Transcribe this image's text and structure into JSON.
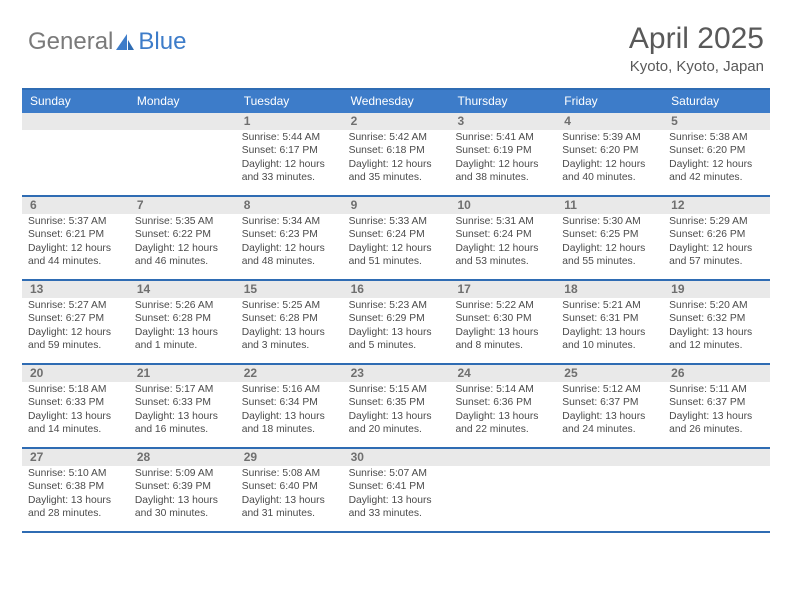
{
  "brand": {
    "part1": "General",
    "part2": "Blue"
  },
  "title": "April 2025",
  "location": "Kyoto, Kyoto, Japan",
  "colors": {
    "header_bg": "#3d7cc9",
    "border": "#2f6cb3",
    "daynum_bg": "#e9e9e9",
    "text": "#4b4b4b",
    "title_text": "#595959"
  },
  "dayNames": [
    "Sunday",
    "Monday",
    "Tuesday",
    "Wednesday",
    "Thursday",
    "Friday",
    "Saturday"
  ],
  "weeks": [
    [
      null,
      null,
      {
        "n": "1",
        "sunrise": "5:44 AM",
        "sunset": "6:17 PM",
        "daylight": "12 hours and 33 minutes."
      },
      {
        "n": "2",
        "sunrise": "5:42 AM",
        "sunset": "6:18 PM",
        "daylight": "12 hours and 35 minutes."
      },
      {
        "n": "3",
        "sunrise": "5:41 AM",
        "sunset": "6:19 PM",
        "daylight": "12 hours and 38 minutes."
      },
      {
        "n": "4",
        "sunrise": "5:39 AM",
        "sunset": "6:20 PM",
        "daylight": "12 hours and 40 minutes."
      },
      {
        "n": "5",
        "sunrise": "5:38 AM",
        "sunset": "6:20 PM",
        "daylight": "12 hours and 42 minutes."
      }
    ],
    [
      {
        "n": "6",
        "sunrise": "5:37 AM",
        "sunset": "6:21 PM",
        "daylight": "12 hours and 44 minutes."
      },
      {
        "n": "7",
        "sunrise": "5:35 AM",
        "sunset": "6:22 PM",
        "daylight": "12 hours and 46 minutes."
      },
      {
        "n": "8",
        "sunrise": "5:34 AM",
        "sunset": "6:23 PM",
        "daylight": "12 hours and 48 minutes."
      },
      {
        "n": "9",
        "sunrise": "5:33 AM",
        "sunset": "6:24 PM",
        "daylight": "12 hours and 51 minutes."
      },
      {
        "n": "10",
        "sunrise": "5:31 AM",
        "sunset": "6:24 PM",
        "daylight": "12 hours and 53 minutes."
      },
      {
        "n": "11",
        "sunrise": "5:30 AM",
        "sunset": "6:25 PM",
        "daylight": "12 hours and 55 minutes."
      },
      {
        "n": "12",
        "sunrise": "5:29 AM",
        "sunset": "6:26 PM",
        "daylight": "12 hours and 57 minutes."
      }
    ],
    [
      {
        "n": "13",
        "sunrise": "5:27 AM",
        "sunset": "6:27 PM",
        "daylight": "12 hours and 59 minutes."
      },
      {
        "n": "14",
        "sunrise": "5:26 AM",
        "sunset": "6:28 PM",
        "daylight": "13 hours and 1 minute."
      },
      {
        "n": "15",
        "sunrise": "5:25 AM",
        "sunset": "6:28 PM",
        "daylight": "13 hours and 3 minutes."
      },
      {
        "n": "16",
        "sunrise": "5:23 AM",
        "sunset": "6:29 PM",
        "daylight": "13 hours and 5 minutes."
      },
      {
        "n": "17",
        "sunrise": "5:22 AM",
        "sunset": "6:30 PM",
        "daylight": "13 hours and 8 minutes."
      },
      {
        "n": "18",
        "sunrise": "5:21 AM",
        "sunset": "6:31 PM",
        "daylight": "13 hours and 10 minutes."
      },
      {
        "n": "19",
        "sunrise": "5:20 AM",
        "sunset": "6:32 PM",
        "daylight": "13 hours and 12 minutes."
      }
    ],
    [
      {
        "n": "20",
        "sunrise": "5:18 AM",
        "sunset": "6:33 PM",
        "daylight": "13 hours and 14 minutes."
      },
      {
        "n": "21",
        "sunrise": "5:17 AM",
        "sunset": "6:33 PM",
        "daylight": "13 hours and 16 minutes."
      },
      {
        "n": "22",
        "sunrise": "5:16 AM",
        "sunset": "6:34 PM",
        "daylight": "13 hours and 18 minutes."
      },
      {
        "n": "23",
        "sunrise": "5:15 AM",
        "sunset": "6:35 PM",
        "daylight": "13 hours and 20 minutes."
      },
      {
        "n": "24",
        "sunrise": "5:14 AM",
        "sunset": "6:36 PM",
        "daylight": "13 hours and 22 minutes."
      },
      {
        "n": "25",
        "sunrise": "5:12 AM",
        "sunset": "6:37 PM",
        "daylight": "13 hours and 24 minutes."
      },
      {
        "n": "26",
        "sunrise": "5:11 AM",
        "sunset": "6:37 PM",
        "daylight": "13 hours and 26 minutes."
      }
    ],
    [
      {
        "n": "27",
        "sunrise": "5:10 AM",
        "sunset": "6:38 PM",
        "daylight": "13 hours and 28 minutes."
      },
      {
        "n": "28",
        "sunrise": "5:09 AM",
        "sunset": "6:39 PM",
        "daylight": "13 hours and 30 minutes."
      },
      {
        "n": "29",
        "sunrise": "5:08 AM",
        "sunset": "6:40 PM",
        "daylight": "13 hours and 31 minutes."
      },
      {
        "n": "30",
        "sunrise": "5:07 AM",
        "sunset": "6:41 PM",
        "daylight": "13 hours and 33 minutes."
      },
      null,
      null,
      null
    ]
  ],
  "labels": {
    "sunrise": "Sunrise:",
    "sunset": "Sunset:",
    "daylight": "Daylight:"
  }
}
